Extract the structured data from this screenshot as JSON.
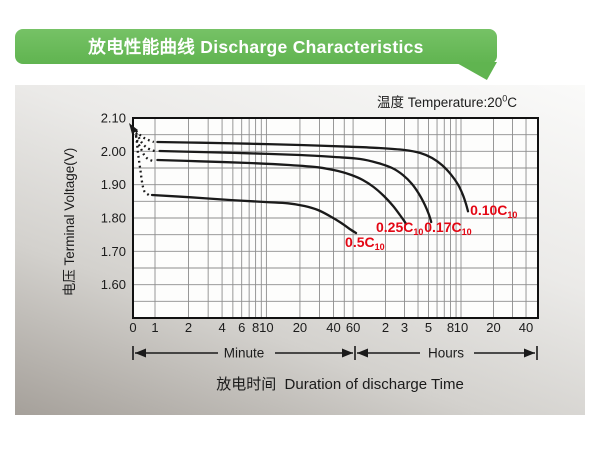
{
  "header": {
    "title": "放电性能曲线 Discharge Characteristics"
  },
  "panel": {
    "temperature": {
      "prefix": "温度 Temperature:20",
      "sup": "0",
      "suffix": "C"
    },
    "x_axis_caption": "放电时间  Duration of discharge Time"
  },
  "colors": {
    "accent_green": "#60b450",
    "label_red": "#e30613",
    "curve_black": "#1a1a1a"
  },
  "chart_data": {
    "type": "line",
    "title": "放电性能曲线 Discharge Characteristics",
    "ylabel": "电压 Terminal Voltage(V)",
    "xlabel": "放电时间 Duration of discharge Time",
    "temperature_c": 20,
    "x_scale": "logarithmic time (minutes segment then hours segment)",
    "ylim": [
      1.5,
      2.1
    ],
    "y_grid_step": 0.05,
    "y_tick_labels": [
      2.1,
      2.0,
      1.9,
      1.8,
      1.7,
      1.6
    ],
    "x_ticks_minutes": {
      "labeled": [
        0,
        1,
        2,
        4,
        6,
        8,
        10,
        20,
        40,
        60
      ],
      "grid": [
        1,
        2,
        3,
        4,
        5,
        6,
        7,
        8,
        9,
        10,
        20,
        30,
        40,
        50,
        60
      ]
    },
    "x_ticks_hours": {
      "labeled": [
        2,
        3,
        5,
        8,
        10,
        20,
        40
      ],
      "grid": [
        2,
        3,
        4,
        5,
        6,
        7,
        8,
        9,
        10,
        20,
        30,
        40
      ]
    },
    "x_segments": [
      {
        "label": "Minute"
      },
      {
        "label": "Hours"
      }
    ],
    "series": [
      {
        "name": "0.10C10",
        "label_main": "0.10C",
        "label_sub": "10",
        "label_anchor": {
          "t_min": 728,
          "v": 1.809
        },
        "dotted": [
          [
            0.675,
            2.061
          ],
          [
            0.735,
            2.049
          ],
          [
            0.8,
            2.04
          ],
          [
            0.885,
            2.033
          ],
          [
            0.975,
            2.028
          ]
        ],
        "points": [
          [
            1.05,
            2.028
          ],
          [
            2.5,
            2.026
          ],
          [
            7,
            2.023
          ],
          [
            20,
            2.019
          ],
          [
            55,
            2.014
          ],
          [
            105,
            2.01
          ],
          [
            180,
            2.004
          ],
          [
            252,
            1.995
          ],
          [
            324,
            1.98
          ],
          [
            402,
            1.958
          ],
          [
            486,
            1.93
          ],
          [
            564,
            1.9
          ],
          [
            624,
            1.87
          ],
          [
            666,
            1.843
          ],
          [
            696,
            1.82
          ]
        ]
      },
      {
        "name": "0.17C10",
        "label_main": "0.17C",
        "label_sub": "10",
        "label_anchor": {
          "t_min": 274,
          "v": 1.758
        },
        "dotted": [
          [
            0.675,
            2.055
          ],
          [
            0.72,
            2.04
          ],
          [
            0.765,
            2.025
          ],
          [
            0.83,
            2.013
          ],
          [
            0.92,
            2.004
          ],
          [
            1.0,
            2.001
          ]
        ],
        "points": [
          [
            1.1,
            2.001
          ],
          [
            2.5,
            1.998
          ],
          [
            7,
            1.994
          ],
          [
            20,
            1.989
          ],
          [
            41,
            1.983
          ],
          [
            70,
            1.977
          ],
          [
            102,
            1.965
          ],
          [
            138,
            1.95
          ],
          [
            174,
            1.929
          ],
          [
            211,
            1.902
          ],
          [
            245,
            1.872
          ],
          [
            278,
            1.839
          ],
          [
            304,
            1.809
          ],
          [
            318,
            1.788
          ]
        ]
      },
      {
        "name": "0.25C10",
        "label_main": "0.25C",
        "label_sub": "10",
        "label_anchor": {
          "t_min": 98,
          "v": 1.758
        },
        "dotted": [
          [
            0.675,
            2.049
          ],
          [
            0.7,
            2.028
          ],
          [
            0.75,
            2.007
          ],
          [
            0.8,
            1.989
          ],
          [
            0.865,
            1.977
          ],
          [
            0.96,
            1.971
          ]
        ],
        "points": [
          [
            1.05,
            1.974
          ],
          [
            2.5,
            1.97
          ],
          [
            7,
            1.965
          ],
          [
            16,
            1.959
          ],
          [
            29,
            1.952
          ],
          [
            44,
            1.941
          ],
          [
            58,
            1.929
          ],
          [
            74,
            1.914
          ],
          [
            93,
            1.893
          ],
          [
            116,
            1.866
          ],
          [
            141,
            1.836
          ],
          [
            163,
            1.809
          ],
          [
            178,
            1.792
          ],
          [
            186,
            1.782
          ]
        ]
      },
      {
        "name": "0.5C10",
        "label_main": "0.5C",
        "label_sub": "10",
        "label_anchor": {
          "t_min": 50.8,
          "v": 1.713
        },
        "dotted": [
          [
            0.675,
            2.046
          ],
          [
            0.69,
            2.025
          ],
          [
            0.7,
            2.001
          ],
          [
            0.715,
            1.977
          ],
          [
            0.73,
            1.956
          ],
          [
            0.745,
            1.935
          ],
          [
            0.76,
            1.914
          ],
          [
            0.78,
            1.893
          ],
          [
            0.81,
            1.878
          ],
          [
            0.88,
            1.869
          ]
        ],
        "points": [
          [
            0.94,
            1.869
          ],
          [
            2.1,
            1.862
          ],
          [
            4.7,
            1.854
          ],
          [
            9.7,
            1.848
          ],
          [
            15.6,
            1.844
          ],
          [
            22,
            1.836
          ],
          [
            29,
            1.824
          ],
          [
            37,
            1.806
          ],
          [
            47,
            1.785
          ],
          [
            56,
            1.767
          ],
          [
            64,
            1.755
          ]
        ]
      }
    ]
  }
}
